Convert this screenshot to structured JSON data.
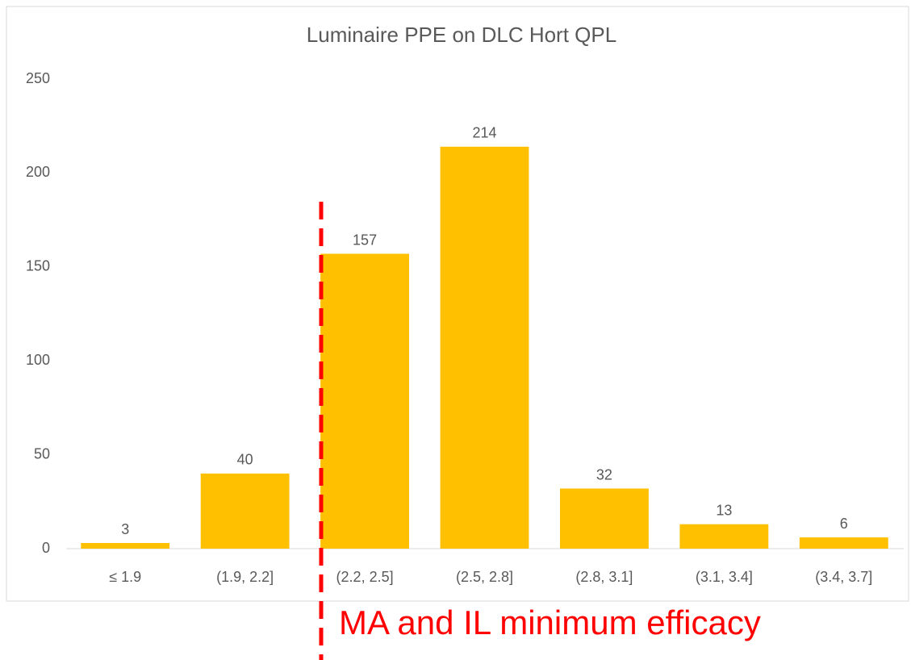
{
  "chart_data": {
    "type": "bar",
    "title": "Luminaire PPE on DLC Hort QPL",
    "categories": [
      "≤ 1.9",
      "(1.9, 2.2]",
      "(2.2, 2.5]",
      "(2.5, 2.8]",
      "(2.8, 3.1]",
      "(3.1, 3.4]",
      "(3.4, 3.7]"
    ],
    "values": [
      3,
      40,
      157,
      214,
      32,
      13,
      6
    ],
    "color": "#ffc000",
    "ylim": [
      0,
      250
    ],
    "yticks": [
      0,
      50,
      100,
      150,
      200,
      250
    ],
    "grid": false,
    "annotation": "MA and IL minimum efficacy"
  }
}
